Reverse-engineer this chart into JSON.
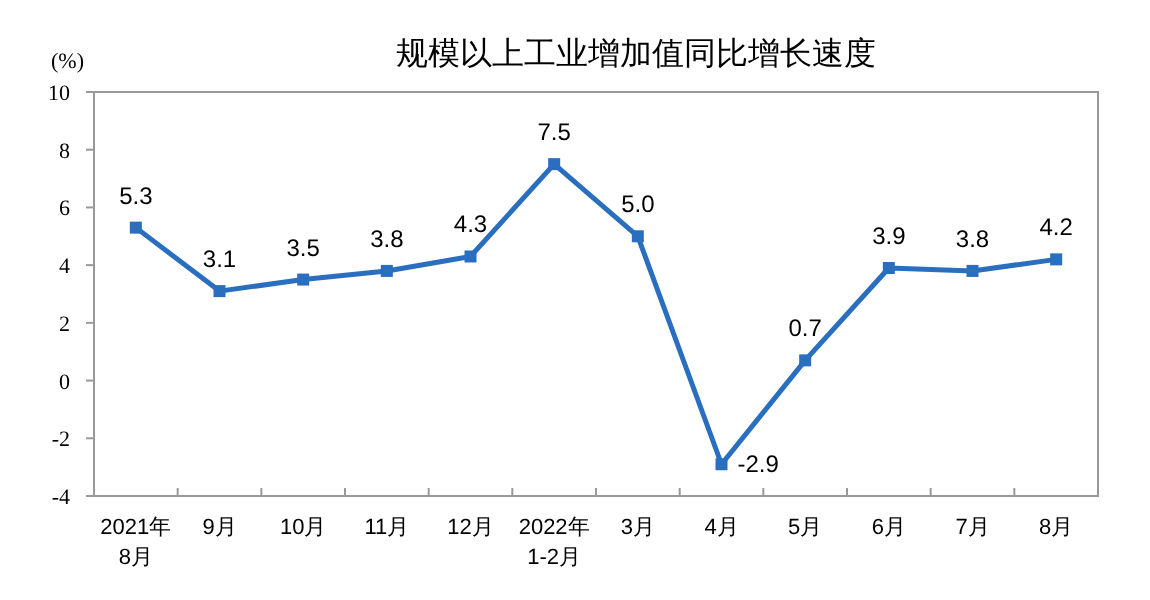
{
  "chart_data": {
    "type": "line",
    "title": "规模以上工业增加值同比增长速度",
    "ylabel": "(%)",
    "categories": [
      "2021年\n8月",
      "9月",
      "10月",
      "11月",
      "12月",
      "2022年\n1-2月",
      "3月",
      "4月",
      "5月",
      "6月",
      "7月",
      "8月"
    ],
    "series": [
      {
        "color": "#2a6ebf",
        "values": [
          5.3,
          3.1,
          3.5,
          3.8,
          4.3,
          7.5,
          5.0,
          -2.9,
          0.7,
          3.9,
          3.8,
          4.2
        ]
      }
    ],
    "value_labels": [
      "5.3",
      "3.1",
      "3.5",
      "3.8",
      "4.3",
      "7.5",
      "5.0",
      "-2.9",
      "0.7",
      "3.9",
      "3.8",
      "4.2"
    ],
    "ylim": [
      -4,
      10
    ],
    "yticks": [
      -4,
      -2,
      0,
      2,
      4,
      6,
      8,
      10
    ],
    "marker": "square",
    "line_style": "solid",
    "grid": false
  }
}
